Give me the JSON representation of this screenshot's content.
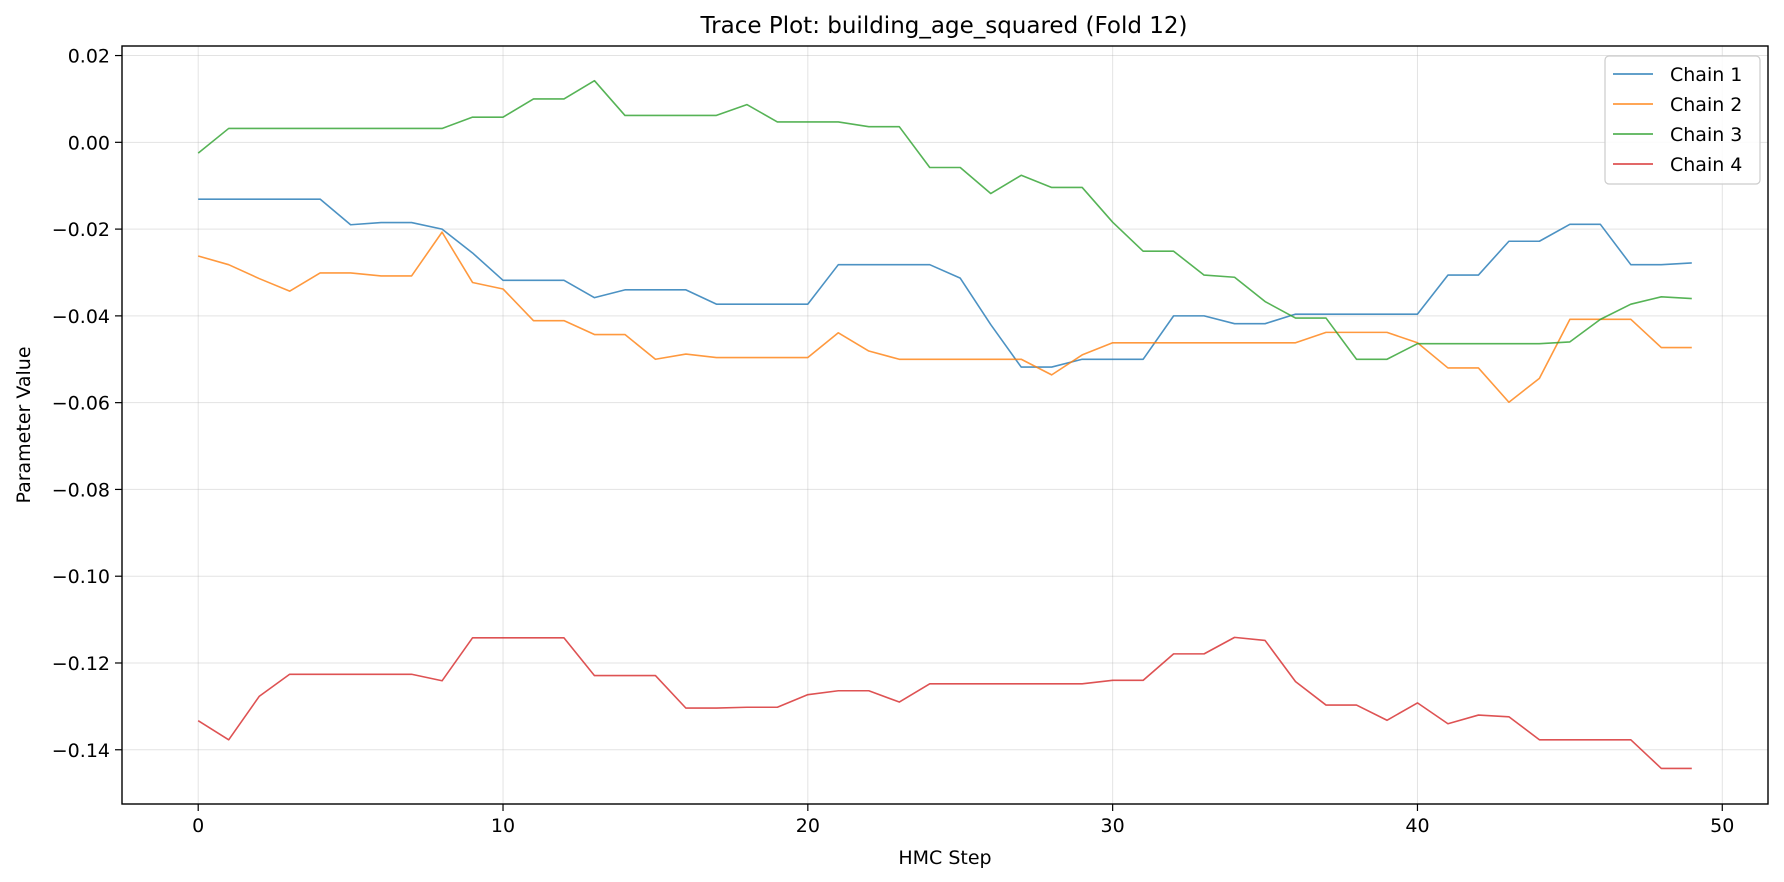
{
  "chart_data": {
    "type": "line",
    "title": "Trace Plot: building_age_squared (Fold 12)",
    "xlabel": "HMC Step",
    "ylabel": "Parameter Value",
    "xlim": [
      -2.5,
      51.5
    ],
    "ylim": [
      -0.1525,
      0.0222
    ],
    "xticks": [
      0,
      10,
      20,
      30,
      40,
      50
    ],
    "xtick_labels": [
      "0",
      "10",
      "20",
      "30",
      "40",
      "50"
    ],
    "yticks": [
      0.02,
      0.0,
      -0.02,
      -0.04,
      -0.06,
      -0.08,
      -0.1,
      -0.12,
      -0.14
    ],
    "ytick_labels": [
      "0.02",
      "0.00",
      "−0.02",
      "−0.04",
      "−0.06",
      "−0.08",
      "−0.10",
      "−0.12",
      "−0.14"
    ],
    "grid": true,
    "legend_position": "top-right",
    "x": [
      0,
      1,
      2,
      3,
      4,
      5,
      6,
      7,
      8,
      9,
      10,
      11,
      12,
      13,
      14,
      15,
      16,
      17,
      18,
      19,
      20,
      21,
      22,
      23,
      24,
      25,
      26,
      27,
      28,
      29,
      30,
      31,
      32,
      33,
      34,
      35,
      36,
      37,
      38,
      39,
      40,
      41,
      42,
      43,
      44,
      45,
      46,
      47,
      48,
      49
    ],
    "series": [
      {
        "name": "Chain 1",
        "color": "#1f77b4",
        "values": [
          -0.0131,
          -0.0131,
          -0.0131,
          -0.0131,
          -0.0131,
          -0.019,
          -0.0185,
          -0.0185,
          -0.02,
          -0.0255,
          -0.0318,
          -0.0318,
          -0.0318,
          -0.0358,
          -0.034,
          -0.034,
          -0.034,
          -0.0373,
          -0.0373,
          -0.0373,
          -0.0373,
          -0.0282,
          -0.0282,
          -0.0282,
          -0.0282,
          -0.0313,
          -0.042,
          -0.0518,
          -0.0518,
          -0.05,
          -0.05,
          -0.05,
          -0.04,
          -0.04,
          -0.0418,
          -0.0418,
          -0.0396,
          -0.0396,
          -0.0396,
          -0.0396,
          -0.0396,
          -0.0306,
          -0.0306,
          -0.0228,
          -0.0228,
          -0.0189,
          -0.0189,
          -0.0282,
          -0.0282,
          -0.0278
        ]
      },
      {
        "name": "Chain 2",
        "color": "#ff7f0e",
        "values": [
          -0.0262,
          -0.0282,
          -0.0314,
          -0.0343,
          -0.0301,
          -0.0301,
          -0.0308,
          -0.0308,
          -0.0207,
          -0.0323,
          -0.0338,
          -0.0411,
          -0.0411,
          -0.0443,
          -0.0443,
          -0.05,
          -0.0488,
          -0.0496,
          -0.0496,
          -0.0496,
          -0.0496,
          -0.0439,
          -0.0481,
          -0.05,
          -0.05,
          -0.05,
          -0.05,
          -0.05,
          -0.0536,
          -0.049,
          -0.0462,
          -0.0462,
          -0.0462,
          -0.0462,
          -0.0462,
          -0.0462,
          -0.0462,
          -0.0438,
          -0.0438,
          -0.0438,
          -0.0462,
          -0.052,
          -0.052,
          -0.0599,
          -0.0544,
          -0.0408,
          -0.0408,
          -0.0408,
          -0.0473,
          -0.0473
        ]
      },
      {
        "name": "Chain 3",
        "color": "#2ca02c",
        "values": [
          -0.0025,
          0.0032,
          0.0032,
          0.0032,
          0.0032,
          0.0032,
          0.0032,
          0.0032,
          0.0032,
          0.0058,
          0.0058,
          0.01,
          0.01,
          0.0142,
          0.0062,
          0.0062,
          0.0062,
          0.0062,
          0.0087,
          0.0047,
          0.0047,
          0.0047,
          0.0036,
          0.0036,
          -0.0058,
          -0.0058,
          -0.0118,
          -0.0076,
          -0.0104,
          -0.0104,
          -0.0184,
          -0.0251,
          -0.0251,
          -0.0306,
          -0.0311,
          -0.0367,
          -0.0405,
          -0.0405,
          -0.05,
          -0.05,
          -0.0464,
          -0.0464,
          -0.0464,
          -0.0464,
          -0.0464,
          -0.046,
          -0.0408,
          -0.0373,
          -0.0356,
          -0.036
        ]
      },
      {
        "name": "Chain 4",
        "color": "#d62728",
        "values": [
          -0.1333,
          -0.1377,
          -0.1277,
          -0.1226,
          -0.1226,
          -0.1226,
          -0.1226,
          -0.1226,
          -0.1241,
          -0.1142,
          -0.1142,
          -0.1142,
          -0.1142,
          -0.1229,
          -0.1229,
          -0.1229,
          -0.1304,
          -0.1304,
          -0.1302,
          -0.1302,
          -0.1273,
          -0.1264,
          -0.1264,
          -0.129,
          -0.1248,
          -0.1248,
          -0.1248,
          -0.1248,
          -0.1248,
          -0.1248,
          -0.124,
          -0.124,
          -0.1179,
          -0.1179,
          -0.1141,
          -0.1148,
          -0.1243,
          -0.1297,
          -0.1297,
          -0.1332,
          -0.1292,
          -0.134,
          -0.132,
          -0.1324,
          -0.1377,
          -0.1377,
          -0.1377,
          -0.1377,
          -0.1443,
          -0.1443
        ]
      }
    ]
  }
}
